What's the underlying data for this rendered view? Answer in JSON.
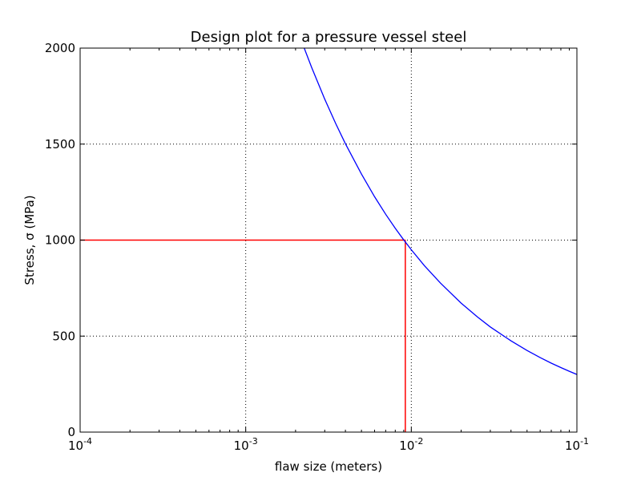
{
  "chart_data": {
    "type": "line",
    "title": "Design plot for a pressure vessel steel",
    "xlabel": "flaw size (meters)",
    "ylabel": "Stress, σ (MPa)",
    "xscale": "log",
    "xlim": [
      0.0001,
      0.1
    ],
    "ylim": [
      0,
      2000
    ],
    "grid": true,
    "grid_style": "dotted",
    "xticks": [
      {
        "base": "10",
        "exp": "-4",
        "value": 0.0001
      },
      {
        "base": "10",
        "exp": "-3",
        "value": 0.001
      },
      {
        "base": "10",
        "exp": "-2",
        "value": 0.01
      },
      {
        "base": "10",
        "exp": "-1",
        "value": 0.1
      }
    ],
    "yticks": [
      "0",
      "500",
      "1000",
      "1500",
      "2000"
    ],
    "series": [
      {
        "color": "#0000ff",
        "formula": "sigma = 95.0 / sqrt(a)",
        "x": [
          0.002256,
          0.0025,
          0.003,
          0.0035,
          0.004,
          0.005,
          0.006,
          0.007,
          0.008,
          0.009,
          0.01,
          0.012,
          0.015,
          0.02,
          0.025,
          0.03,
          0.04,
          0.05,
          0.06,
          0.07,
          0.08,
          0.09,
          0.1
        ],
        "y": [
          2000,
          1900,
          1734,
          1606,
          1502,
          1344,
          1226,
          1135,
          1062,
          1001,
          950,
          867,
          776,
          672,
          601,
          548,
          475,
          425,
          388,
          359,
          336,
          317,
          300
        ]
      }
    ],
    "annotations": [
      {
        "color": "#ff0000",
        "type": "horizontal",
        "y": 1000,
        "x_from": 0.0001,
        "x_to": 0.0092
      },
      {
        "color": "#ff0000",
        "type": "vertical",
        "x": 0.0092,
        "y_from": 0,
        "y_to": 1000
      }
    ]
  }
}
